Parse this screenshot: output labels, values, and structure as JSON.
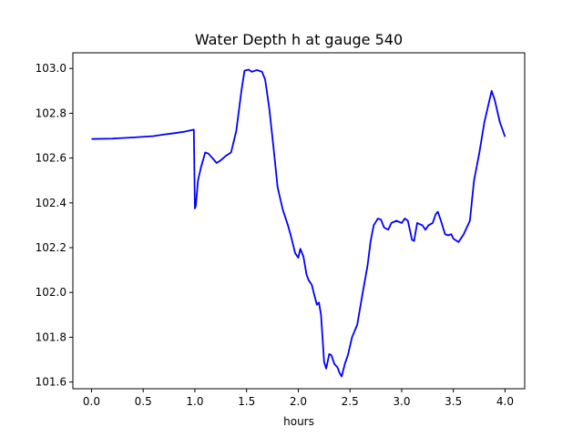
{
  "chart_data": {
    "type": "line",
    "title": "Water Depth h at gauge 540",
    "xlabel": "hours",
    "ylabel": "",
    "xlim": [
      -0.18,
      4.19
    ],
    "ylim": [
      101.57,
      103.07
    ],
    "grid": false,
    "legend": "none",
    "x_ticks": [
      0.0,
      0.5,
      1.0,
      1.5,
      2.0,
      2.5,
      3.0,
      3.5,
      4.0
    ],
    "x_tick_labels": [
      "0.0",
      "0.5",
      "1.0",
      "1.5",
      "2.0",
      "2.5",
      "3.0",
      "3.5",
      "4.0"
    ],
    "y_ticks": [
      101.6,
      101.8,
      102.0,
      102.2,
      102.4,
      102.6,
      102.8,
      103.0
    ],
    "y_tick_labels": [
      "101.6",
      "101.8",
      "102.0",
      "102.2",
      "102.4",
      "102.6",
      "102.8",
      "103.0"
    ],
    "series": [
      {
        "color": "#0000ff",
        "x": [
          0.0,
          0.2,
          0.4,
          0.6,
          0.7,
          0.8,
          0.9,
          0.99,
          1.0,
          1.01,
          1.03,
          1.06,
          1.1,
          1.13,
          1.17,
          1.21,
          1.25,
          1.3,
          1.35,
          1.4,
          1.45,
          1.48,
          1.52,
          1.55,
          1.6,
          1.65,
          1.68,
          1.72,
          1.76,
          1.8,
          1.85,
          1.9,
          1.93,
          1.97,
          2.0,
          2.02,
          2.05,
          2.08,
          2.1,
          2.13,
          2.16,
          2.18,
          2.2,
          2.22,
          2.25,
          2.27,
          2.3,
          2.32,
          2.35,
          2.38,
          2.4,
          2.42,
          2.45,
          2.48,
          2.52,
          2.57,
          2.62,
          2.67,
          2.7,
          2.73,
          2.77,
          2.8,
          2.83,
          2.87,
          2.9,
          2.95,
          3.0,
          3.03,
          3.06,
          3.1,
          3.12,
          3.15,
          3.2,
          3.23,
          3.26,
          3.3,
          3.33,
          3.35,
          3.38,
          3.42,
          3.45,
          3.48,
          3.5,
          3.55,
          3.6,
          3.62,
          3.66,
          3.7,
          3.75,
          3.8,
          3.85,
          3.87,
          3.9,
          3.95,
          4.0
        ],
        "y": [
          102.685,
          102.687,
          102.692,
          102.698,
          102.705,
          102.711,
          102.718,
          102.727,
          102.375,
          102.39,
          102.5,
          102.56,
          102.625,
          102.62,
          102.6,
          102.578,
          102.59,
          102.61,
          102.625,
          102.72,
          102.9,
          102.99,
          102.995,
          102.985,
          102.993,
          102.985,
          102.95,
          102.82,
          102.65,
          102.47,
          102.37,
          102.3,
          102.25,
          102.175,
          102.155,
          102.195,
          102.16,
          102.08,
          102.055,
          102.035,
          101.98,
          101.945,
          101.955,
          101.9,
          101.69,
          101.66,
          101.725,
          101.72,
          101.68,
          101.665,
          101.64,
          101.625,
          101.68,
          101.72,
          101.8,
          101.855,
          101.99,
          102.12,
          102.23,
          102.3,
          102.33,
          102.325,
          102.29,
          102.28,
          102.31,
          102.32,
          102.31,
          102.33,
          102.32,
          102.235,
          102.23,
          102.31,
          102.3,
          102.28,
          102.3,
          102.31,
          102.35,
          102.36,
          102.32,
          102.26,
          102.255,
          102.26,
          102.24,
          102.225,
          102.26,
          102.28,
          102.32,
          102.5,
          102.62,
          102.76,
          102.86,
          102.9,
          102.86,
          102.76,
          102.695
        ]
      }
    ]
  }
}
